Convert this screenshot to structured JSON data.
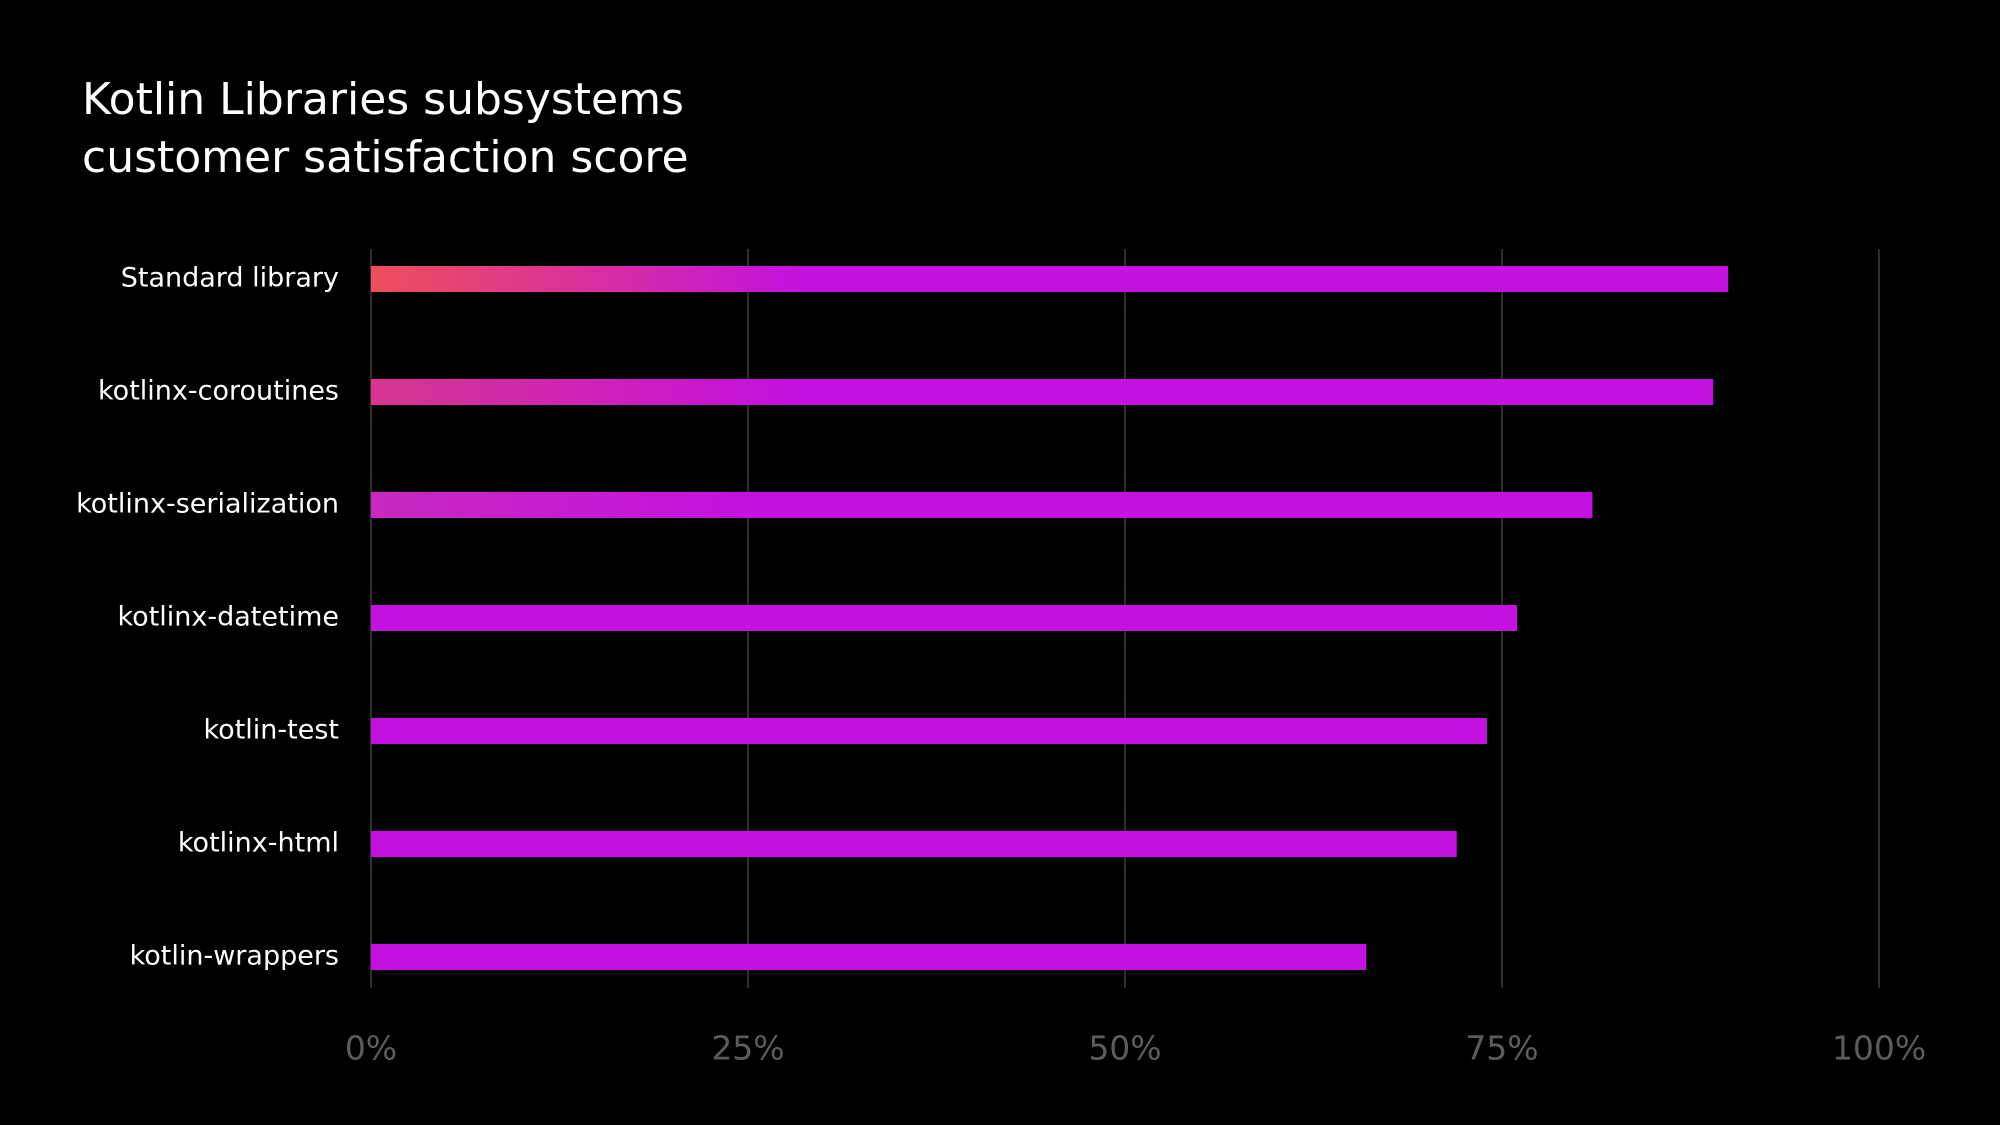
{
  "chart_data": {
    "type": "bar",
    "orientation": "horizontal",
    "title": [
      "Kotlin Libraries subsystems",
      "customer satisfaction score"
    ],
    "categories": [
      "Standard library",
      "kotlinx-coroutines",
      "kotlinx-serialization",
      "kotlinx-datetime",
      "kotlin-test",
      "kotlinx-html",
      "kotlin-wrappers"
    ],
    "values": [
      90,
      89,
      81,
      76,
      74,
      72,
      66
    ],
    "color": "#c410e0",
    "bar_start_colors": [
      "#ee4f5a",
      "#d9348f",
      "#c928c0",
      "#c410e0",
      "#c410e0",
      "#c410e0",
      "#c410e0"
    ],
    "xlim": [
      0,
      100
    ],
    "xticks": [
      {
        "value": 0,
        "label": "0%"
      },
      {
        "value": 25,
        "label": "25%"
      },
      {
        "value": 50,
        "label": "50%"
      },
      {
        "value": 75,
        "label": "75%"
      },
      {
        "value": 100,
        "label": "100%"
      }
    ],
    "grid": true
  }
}
